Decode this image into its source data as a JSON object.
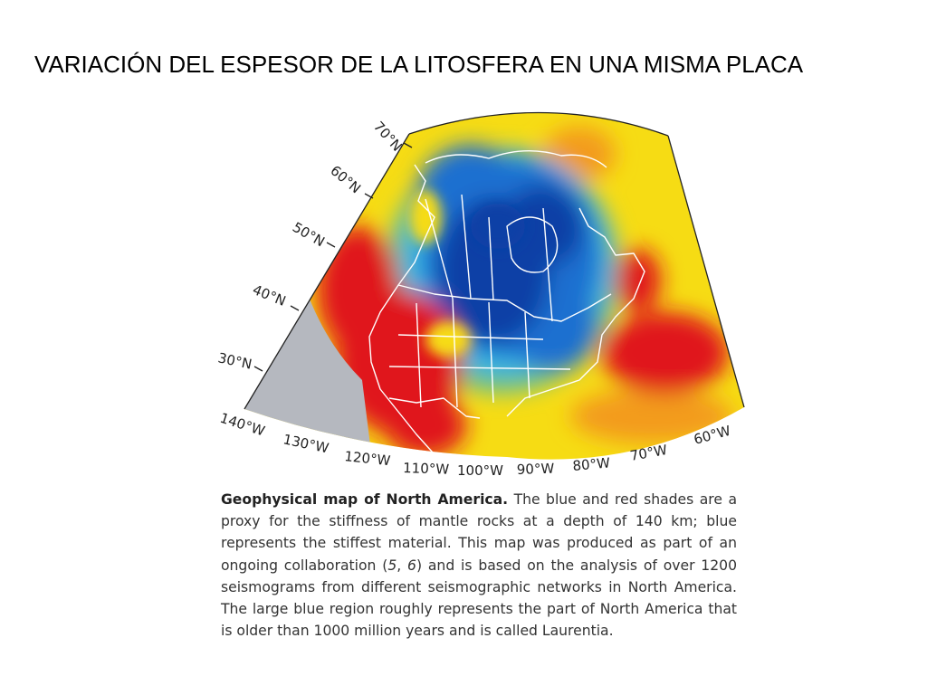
{
  "slide": {
    "title": "VARIACIÓN DEL ESPESOR DE LA LITOSFERA EN UNA MISMA PLACA"
  },
  "map": {
    "latitude_labels": [
      "70°N",
      "60°N",
      "50°N",
      "40°N",
      "30°N"
    ],
    "longitude_labels": [
      "140°W",
      "130°W",
      "120°W",
      "110°W",
      "100°W",
      "90°W",
      "80°W",
      "70°W",
      "60°W"
    ],
    "colors": {
      "stiffest_blue": "#0a3fa6",
      "blue": "#1e6fd0",
      "cyan": "#39b6e6",
      "green": "#6cc08a",
      "yellow": "#f6dc14",
      "orange": "#f39b1c",
      "red": "#e0131b",
      "no_data_gray": "#b5b8bf",
      "borders": "#ffffff"
    }
  },
  "caption": {
    "lead": "Geophysical map of North America.",
    "segments": [
      " The blue and red shades are a proxy for the stiffness of mantle rocks at a depth of 140 km; blue represents the stiffest material. This map was produced as part of an ongoing collaboration (",
      "5",
      ", ",
      "6",
      ") and is based on the analysis of over 1200 seismograms from different seismographic networks in North America. The large blue region roughly represents the part of North America that is older than 1000 million years and is called Laurentia."
    ]
  }
}
